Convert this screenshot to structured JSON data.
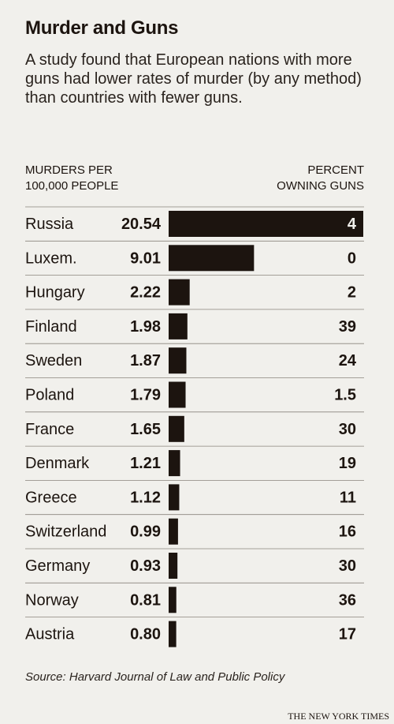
{
  "title": "Murder and Guns",
  "subtitle": "A study found that European nations with more guns had lower rates of murder (by any method) than countries with fewer guns.",
  "headers": {
    "left_line1": "MURDERS PER",
    "left_line2": "100,000 PEOPLE",
    "right_line1": "PERCENT",
    "right_line2": "OWNING GUNS"
  },
  "source": "Source: Harvard Journal of Law and Public Policy",
  "credit": "THE NEW YORK TIMES",
  "colors": {
    "bar": "#1c140f",
    "background": "#f1f0ec",
    "divider": "#8a847c",
    "bar_label_on_dark": "#f1f0ec"
  },
  "chart_data": {
    "type": "table",
    "columns": [
      "Country",
      "Murders per 100,000 people",
      "Percent owning guns"
    ],
    "categories": [
      "Russia",
      "Luxem.",
      "Hungary",
      "Finland",
      "Sweden",
      "Poland",
      "France",
      "Denmark",
      "Greece",
      "Switzerland",
      "Germany",
      "Norway",
      "Austria"
    ],
    "murder_rates": [
      "20.54",
      "9.01",
      "2.22",
      "1.98",
      "1.87",
      "1.79",
      "1.65",
      "1.21",
      "1.12",
      "0.99",
      "0.93",
      "0.81",
      "0.80"
    ],
    "gun_ownership": [
      "4",
      "0",
      "2",
      "39",
      "24",
      "1.5",
      "30",
      "19",
      "11",
      "16",
      "30",
      "36",
      "17"
    ],
    "bar_series": "murder_rates",
    "xlim": [
      0,
      20.54
    ]
  }
}
